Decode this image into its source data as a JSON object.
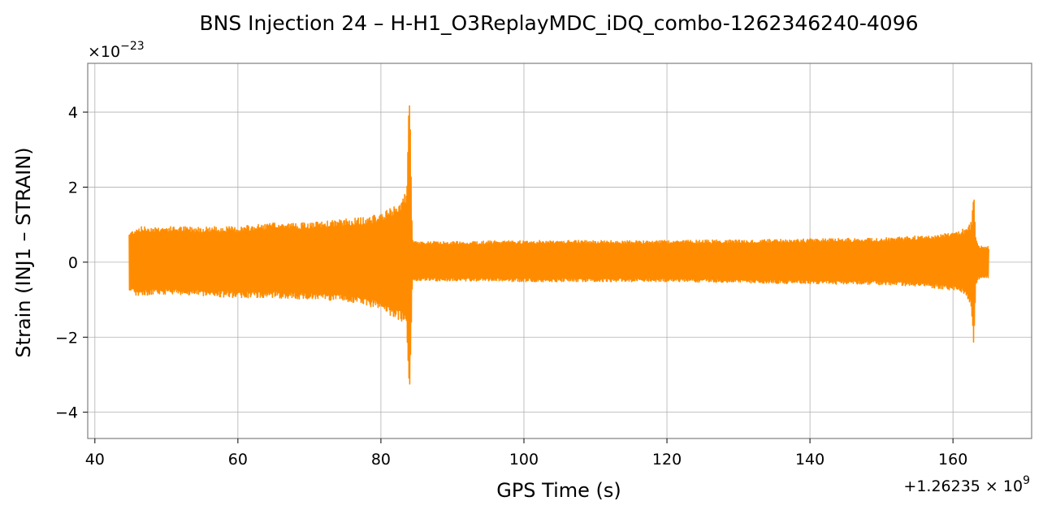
{
  "chart_data": {
    "type": "line",
    "title": "BNS Injection 24 – H-H1_O3ReplayMDC_iDQ_combo-1262346240-4096",
    "xlabel": "GPS Time (s)",
    "ylabel": "Strain (INJ1 – STRAIN)",
    "x_offset_label": "+1.26235 × 10",
    "x_offset_exp": "9",
    "y_multiplier_label": "×10",
    "y_multiplier_exp": "−23",
    "xlim": [
      39,
      171
    ],
    "ylim": [
      -4.7,
      5.3
    ],
    "x_ticks": [
      {
        "value": 40,
        "label": "40"
      },
      {
        "value": 60,
        "label": "60"
      },
      {
        "value": 80,
        "label": "80"
      },
      {
        "value": 100,
        "label": "100"
      },
      {
        "value": 120,
        "label": "120"
      },
      {
        "value": 140,
        "label": "140"
      },
      {
        "value": 160,
        "label": "160"
      }
    ],
    "y_ticks": [
      {
        "value": -4,
        "label": "−4"
      },
      {
        "value": -2,
        "label": "−2"
      },
      {
        "value": 0,
        "label": "0"
      },
      {
        "value": 2,
        "label": "2"
      },
      {
        "value": 4,
        "label": "4"
      }
    ],
    "grid": true,
    "series": [
      {
        "color": "#ff8c00",
        "envelope_x": [
          44.8,
          46,
          50,
          55,
          60,
          65,
          70,
          75,
          78,
          80,
          81,
          82,
          83,
          83.6,
          84.0,
          84.2,
          84.4,
          84.8,
          86,
          90,
          100,
          110,
          120,
          130,
          140,
          150,
          155,
          158,
          160,
          161,
          162,
          162.6,
          162.9,
          163.2,
          163.6,
          164.2,
          165.0
        ],
        "envelope_upper": [
          0.8,
          0.95,
          0.95,
          0.95,
          0.95,
          1.05,
          1.05,
          1.15,
          1.2,
          1.3,
          1.4,
          1.5,
          1.7,
          1.9,
          4.8,
          2.5,
          0.6,
          0.55,
          0.55,
          0.55,
          0.58,
          0.58,
          0.58,
          0.6,
          0.62,
          0.65,
          0.7,
          0.75,
          0.8,
          0.85,
          0.95,
          1.1,
          2.15,
          0.6,
          0.45,
          0.42,
          0.42
        ],
        "envelope_lower": [
          -0.8,
          -0.9,
          -0.85,
          -0.9,
          -0.95,
          -0.95,
          -1.0,
          -1.05,
          -1.15,
          -1.3,
          -1.4,
          -1.5,
          -1.6,
          -1.8,
          -4.25,
          -2.3,
          -0.55,
          -0.5,
          -0.5,
          -0.5,
          -0.52,
          -0.52,
          -0.52,
          -0.55,
          -0.58,
          -0.6,
          -0.65,
          -0.7,
          -0.75,
          -0.8,
          -0.95,
          -1.3,
          -2.3,
          -0.6,
          -0.45,
          -0.42,
          -0.42
        ]
      }
    ]
  }
}
